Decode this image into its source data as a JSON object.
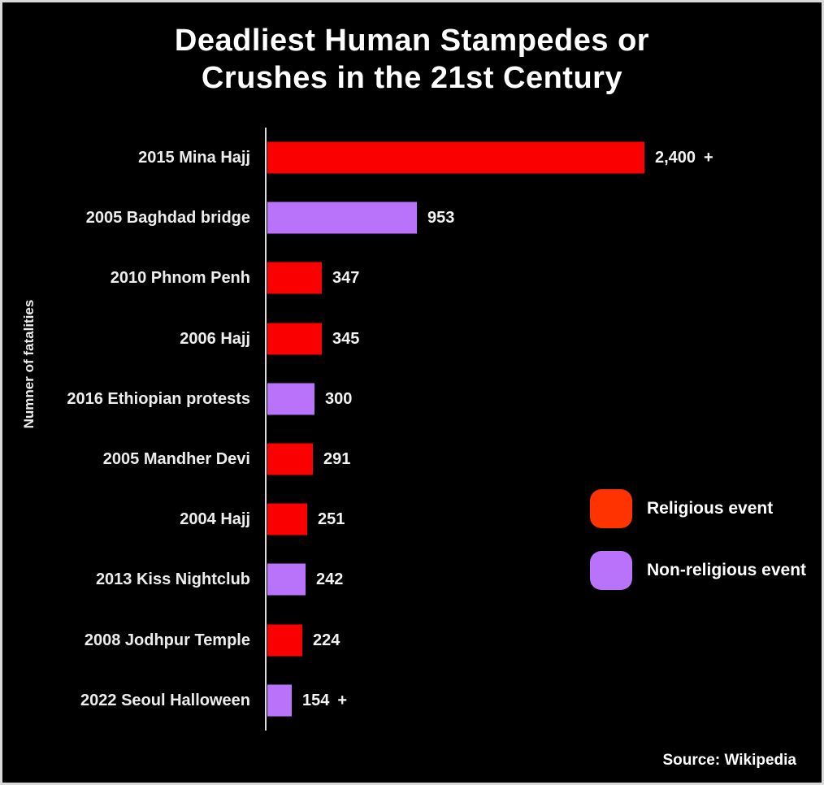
{
  "title": {
    "line1": "Deadliest Human Stampedes or",
    "line2": "Crushes in the 21st Century"
  },
  "y_axis_label": "Numner of fatalities",
  "source_credit": "Source: Wikipedia",
  "legend": {
    "items": [
      {
        "label": "Religious event",
        "type": "religious",
        "color": "#ff3300"
      },
      {
        "label": "Non-religious event",
        "type": "non-religious",
        "color": "#b873fa"
      }
    ]
  },
  "colors": {
    "background": "#000000",
    "frame_border": "#d9d9d9",
    "axis_line": "#dcdcdc",
    "religious_bar": "#fb0000",
    "non_religious_bar": "#b873fa",
    "title_text": "#ffffff",
    "category_label_text": "#ededed",
    "value_label_text": "#f3f3f3"
  },
  "chart_data": {
    "type": "bar",
    "orientation": "horizontal",
    "title": "Deadliest Human Stampedes or Crushes in the 21st Century",
    "xlabel": "",
    "ylabel": "Numner of fatalities",
    "xlim": [
      0,
      2400
    ],
    "grid": false,
    "legend_position": "middle-right",
    "categories": [
      "2015 Mina Hajj",
      "2005 Baghdad bridge",
      "2010 Phnom Penh",
      "2006 Hajj",
      "2016 Ethiopian protests",
      "2005 Mandher Devi",
      "2004 Hajj",
      "2013 Kiss Nightclub",
      "2008 Jodhpur Temple",
      "2022 Seoul Halloween"
    ],
    "values": [
      2400,
      953,
      347,
      345,
      300,
      291,
      251,
      242,
      224,
      154
    ],
    "value_labels": [
      "2,400 +",
      "953",
      "347",
      "345",
      "300",
      "291",
      "251",
      "242",
      "224",
      "154 +"
    ],
    "bar_types": [
      "religious",
      "non-religious",
      "religious",
      "religious",
      "non-religious",
      "religious",
      "religious",
      "non-religious",
      "religious",
      "non-religious"
    ]
  }
}
